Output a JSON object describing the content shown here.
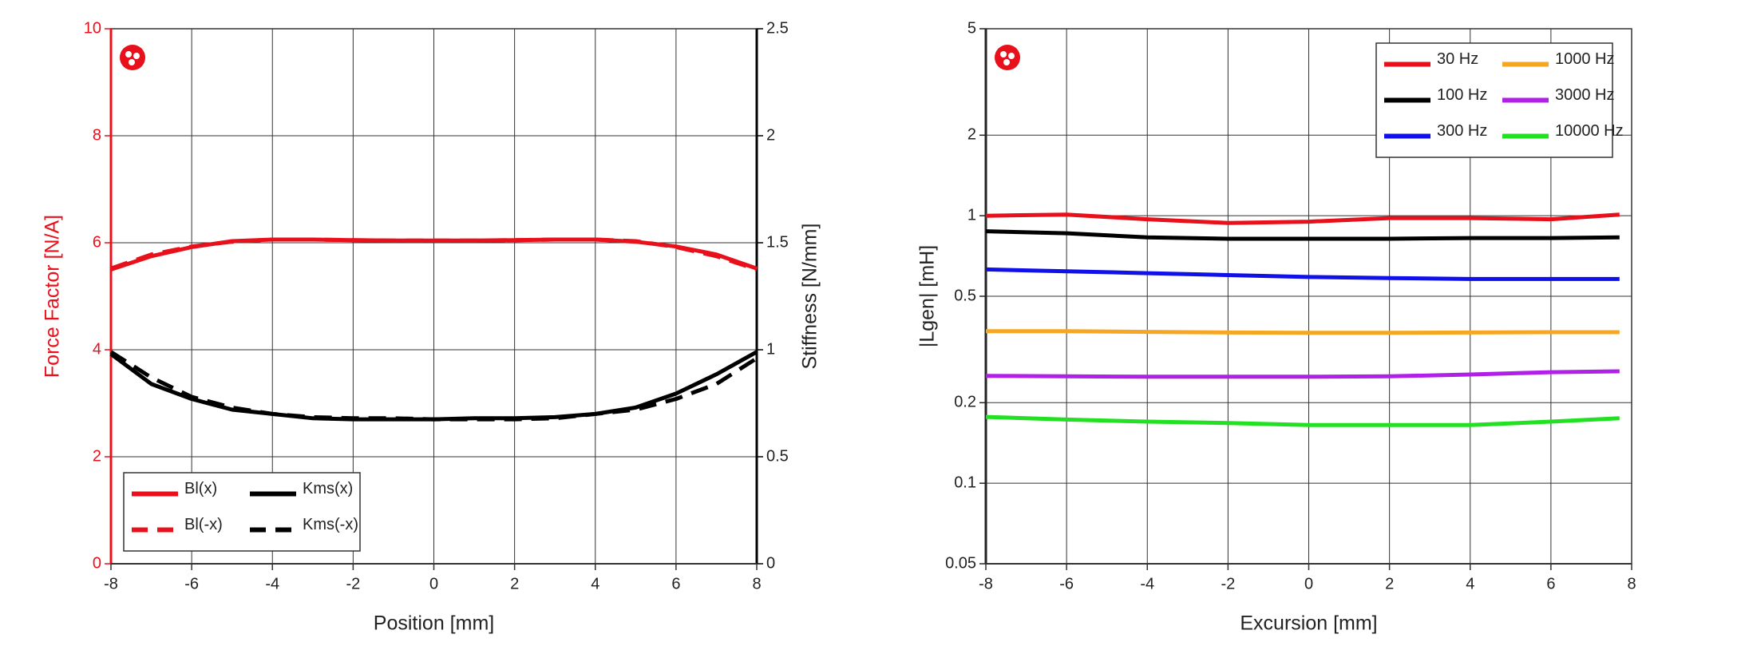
{
  "chart_data": [
    {
      "type": "line",
      "xlabel": "Position [mm]",
      "ylabel": "Force Factor [N/A]",
      "y2label": "Stiffness [N/mm]",
      "xlim": [
        -8,
        8
      ],
      "xticks": [
        -8,
        -6,
        -4,
        -2,
        0,
        2,
        4,
        6,
        8
      ],
      "ylim": [
        0,
        10
      ],
      "yticks": [
        0,
        2,
        4,
        6,
        8,
        10
      ],
      "ycolor": "#e8101a",
      "y2lim": [
        0,
        2.5
      ],
      "y2ticks": [
        0,
        0.5,
        1,
        1.5,
        2,
        2.5
      ],
      "grid": true,
      "legend": "lower left",
      "x": [
        -8,
        -7,
        -6,
        -5,
        -4,
        -3,
        -2,
        -1,
        0,
        1,
        2,
        3,
        4,
        5,
        6,
        7,
        8
      ],
      "series": [
        {
          "name": "Bl(x)",
          "color": "#e8101a",
          "linestyle": "solid",
          "values": [
            5.5,
            5.75,
            5.92,
            6.03,
            6.06,
            6.06,
            6.05,
            6.04,
            6.04,
            6.04,
            6.05,
            6.06,
            6.06,
            6.02,
            5.93,
            5.78,
            5.52
          ]
        },
        {
          "name": "Bl(-x)",
          "color": "#e8101a",
          "linestyle": "dashed",
          "values": [
            5.52,
            5.78,
            5.93,
            6.02,
            6.06,
            6.06,
            6.05,
            6.04,
            6.04,
            6.04,
            6.05,
            6.06,
            6.06,
            6.03,
            5.92,
            5.75,
            5.5
          ]
        },
        {
          "name": "Kms(x)",
          "color": "#000000",
          "linestyle": "solid",
          "axis": "y2",
          "values": [
            0.98,
            0.84,
            0.77,
            0.72,
            0.7,
            0.68,
            0.675,
            0.675,
            0.675,
            0.68,
            0.68,
            0.685,
            0.7,
            0.73,
            0.795,
            0.885,
            0.99
          ]
        },
        {
          "name": "Kms(-x)",
          "color": "#000000",
          "linestyle": "dashed",
          "axis": "y2",
          "values": [
            0.99,
            0.87,
            0.78,
            0.73,
            0.7,
            0.685,
            0.68,
            0.68,
            0.675,
            0.675,
            0.675,
            0.68,
            0.7,
            0.72,
            0.77,
            0.84,
            0.96
          ]
        }
      ]
    },
    {
      "type": "line",
      "xlabel": "Excursion [mm]",
      "ylabel": "|Lgen| [mH]",
      "xlim": [
        -8,
        8
      ],
      "xticks": [
        -8,
        -6,
        -4,
        -2,
        0,
        2,
        4,
        6,
        8
      ],
      "ylim": [
        0.05,
        5
      ],
      "yticks": [
        0.05,
        0.1,
        0.2,
        0.5,
        1,
        2,
        5
      ],
      "ylog": true,
      "grid": true,
      "legend": "upper right",
      "x": [
        -8,
        -6,
        -4,
        -2,
        0,
        2,
        4,
        6,
        7.7
      ],
      "series": [
        {
          "name": "30 Hz",
          "color": "#e8101a",
          "linestyle": "solid",
          "values": [
            1.0,
            1.01,
            0.97,
            0.94,
            0.95,
            0.98,
            0.98,
            0.97,
            1.01
          ]
        },
        {
          "name": "100 Hz",
          "color": "#000000",
          "linestyle": "solid",
          "values": [
            0.875,
            0.86,
            0.83,
            0.82,
            0.82,
            0.82,
            0.825,
            0.825,
            0.83
          ]
        },
        {
          "name": "300 Hz",
          "color": "#1010e8",
          "linestyle": "solid",
          "values": [
            0.63,
            0.62,
            0.61,
            0.6,
            0.59,
            0.585,
            0.58,
            0.58,
            0.58
          ]
        },
        {
          "name": "1000 Hz",
          "color": "#f5a623",
          "linestyle": "solid",
          "values": [
            0.37,
            0.37,
            0.368,
            0.366,
            0.365,
            0.365,
            0.366,
            0.367,
            0.367
          ]
        },
        {
          "name": "3000 Hz",
          "color": "#b020e8",
          "linestyle": "solid",
          "values": [
            0.252,
            0.251,
            0.25,
            0.25,
            0.25,
            0.251,
            0.255,
            0.26,
            0.262
          ]
        },
        {
          "name": "10000 Hz",
          "color": "#22e022",
          "linestyle": "solid",
          "values": [
            0.177,
            0.173,
            0.17,
            0.168,
            0.165,
            0.165,
            0.165,
            0.17,
            0.175
          ]
        }
      ]
    }
  ]
}
